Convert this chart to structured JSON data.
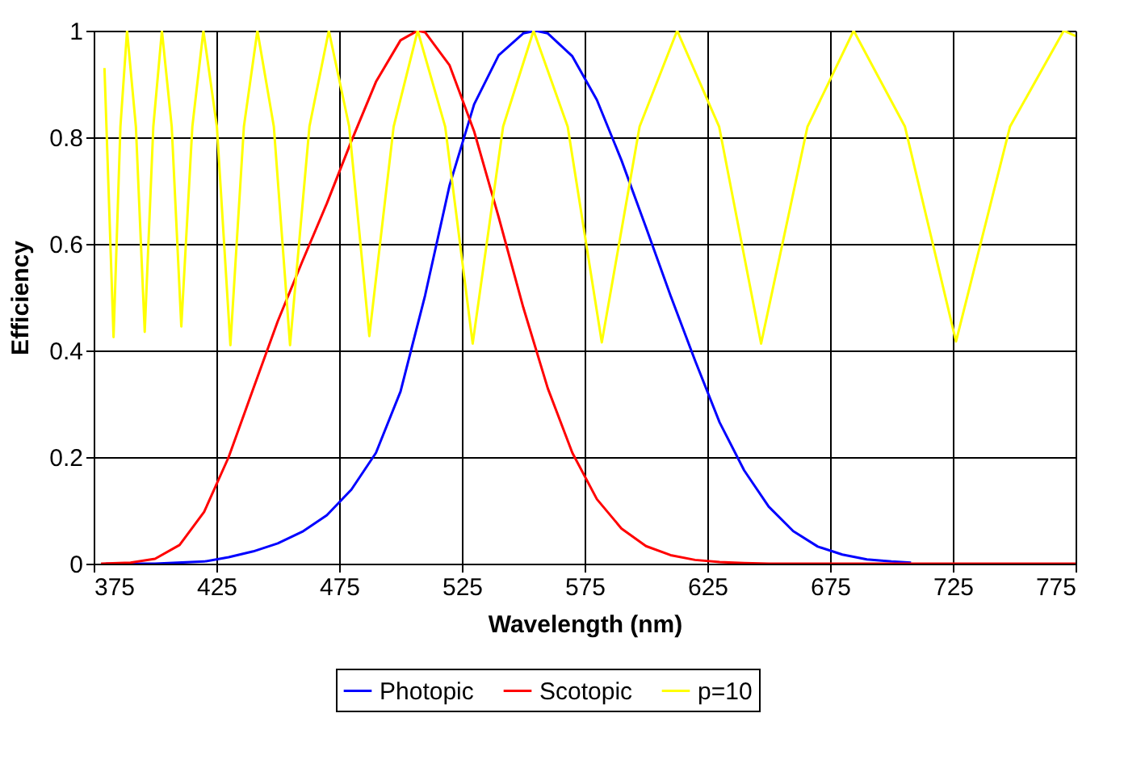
{
  "chart_data": {
    "type": "line",
    "xlabel": "Wavelength (nm)",
    "ylabel": "Efficiency",
    "xlim": [
      375,
      775
    ],
    "xticks": [
      375,
      425,
      475,
      525,
      575,
      625,
      675,
      725,
      775
    ],
    "ylim": [
      0,
      1
    ],
    "yticks": [
      0,
      0.2,
      0.4,
      0.6,
      0.8,
      1
    ],
    "grid": true,
    "legend": "bottom",
    "marker": "none",
    "line_style": "solid",
    "series": [
      {
        "name": "Photopic",
        "color": "#0000ff",
        "x": [
          380,
          400,
          420,
          430,
          440,
          450,
          460,
          470,
          480,
          490,
          500,
          510,
          520,
          530,
          540,
          550,
          555,
          560,
          570,
          580,
          590,
          600,
          610,
          620,
          630,
          640,
          650,
          660,
          670,
          680,
          690,
          700,
          708
        ],
        "values": [
          0,
          0,
          0.004,
          0.012,
          0.023,
          0.038,
          0.06,
          0.091,
          0.139,
          0.208,
          0.323,
          0.503,
          0.71,
          0.862,
          0.954,
          0.995,
          1,
          0.995,
          0.952,
          0.87,
          0.757,
          0.631,
          0.503,
          0.381,
          0.265,
          0.175,
          0.107,
          0.061,
          0.032,
          0.017,
          0.008,
          0.004,
          0.002
        ]
      },
      {
        "name": "Scotopic",
        "color": "#ff0000",
        "x": [
          378,
          390,
          400,
          410,
          420,
          430,
          440,
          450,
          460,
          470,
          480,
          490,
          500,
          507,
          510,
          520,
          530,
          540,
          550,
          560,
          570,
          580,
          590,
          600,
          610,
          620,
          630,
          640,
          650,
          700,
          775
        ],
        "values": [
          0,
          0.002,
          0.009,
          0.035,
          0.097,
          0.2,
          0.328,
          0.455,
          0.567,
          0.676,
          0.793,
          0.904,
          0.982,
          1,
          0.997,
          0.935,
          0.811,
          0.65,
          0.481,
          0.329,
          0.208,
          0.121,
          0.066,
          0.033,
          0.016,
          0.007,
          0.003,
          0.001,
          0,
          0,
          0
        ]
      },
      {
        "name": "p=10",
        "color": "#ffff00",
        "x": [
          379.4,
          383.1,
          385.9,
          388.6,
          392.2,
          395.8,
          399.3,
          402.8,
          406.8,
          410.7,
          415.2,
          419.7,
          425.2,
          430.7,
          436.2,
          441.7,
          448.4,
          455.0,
          462.9,
          470.8,
          479.1,
          487.3,
          497.2,
          507.0,
          518.2,
          529.4,
          541.8,
          554.2,
          568.1,
          582.0,
          597.4,
          612.7,
          629.8,
          646.9,
          665.8,
          684.6,
          705.5,
          726.3,
          748.3,
          770.2,
          775
        ],
        "values": [
          0.93,
          0.425,
          0.82,
          1,
          0.82,
          0.435,
          0.82,
          1,
          0.82,
          0.445,
          0.82,
          1,
          0.82,
          0.41,
          0.82,
          1,
          0.82,
          0.41,
          0.82,
          1,
          0.82,
          0.427,
          0.82,
          1,
          0.82,
          0.413,
          0.82,
          1,
          0.82,
          0.415,
          0.82,
          1,
          0.82,
          0.413,
          0.82,
          1,
          0.82,
          0.417,
          0.82,
          1,
          0.99
        ]
      }
    ]
  }
}
